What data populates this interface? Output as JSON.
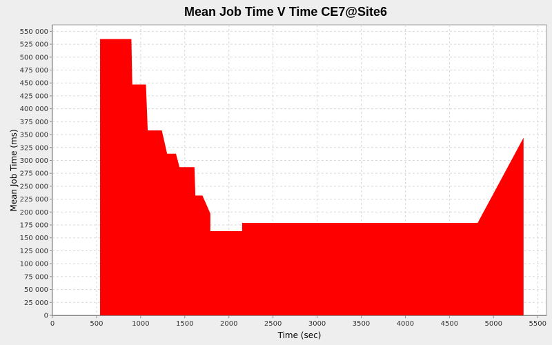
{
  "chart_data": {
    "type": "area",
    "title": "Mean Job Time V Time CE7@Site6",
    "xlabel": "Time (sec)",
    "ylabel": "Mean Job Time (ms)",
    "xlim": [
      0,
      5600
    ],
    "ylim": [
      0,
      562500
    ],
    "grid": true,
    "x_ticks": [
      0,
      500,
      1000,
      1500,
      2000,
      2500,
      3000,
      3500,
      4000,
      4500,
      5000,
      5500
    ],
    "x_tick_labels": [
      "0",
      "500",
      "1000",
      "1500",
      "2000",
      "2500",
      "3000",
      "3500",
      "4000",
      "4500",
      "5000",
      "5500"
    ],
    "y_ticks": [
      0,
      25000,
      50000,
      75000,
      100000,
      125000,
      150000,
      175000,
      200000,
      225000,
      250000,
      275000,
      300000,
      325000,
      350000,
      375000,
      400000,
      425000,
      450000,
      475000,
      500000,
      525000,
      550000
    ],
    "y_tick_labels": [
      "0",
      "25 000",
      "50 000",
      "75 000",
      "100 000",
      "125 000",
      "150 000",
      "175 000",
      "200 000",
      "225 000",
      "250 000",
      "275 000",
      "300 000",
      "325 000",
      "350 000",
      "375 000",
      "400 000",
      "425 000",
      "450 000",
      "475 000",
      "500 000",
      "525 000",
      "550 000"
    ],
    "series": [
      {
        "color": "#ff0000",
        "x": [
          540,
          540,
          895,
          905,
          1060,
          1080,
          1240,
          1300,
          1400,
          1440,
          1610,
          1620,
          1700,
          1790,
          1790,
          2150,
          2150,
          4820,
          5340,
          5340
        ],
        "y": [
          0,
          535000,
          535000,
          447000,
          447000,
          358000,
          358000,
          313000,
          313000,
          287000,
          287000,
          232000,
          232000,
          197000,
          163000,
          163000,
          179000,
          179000,
          344000,
          0
        ]
      }
    ]
  }
}
